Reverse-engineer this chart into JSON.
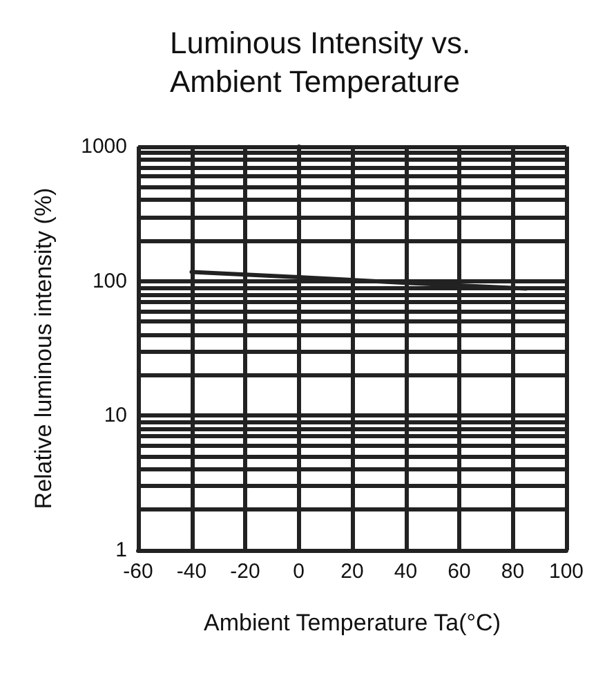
{
  "chart_data": {
    "type": "line",
    "title": "Luminous Intensity vs.\nAmbient Temperature",
    "xlabel": "Ambient Temperature Ta(°C)",
    "ylabel": "Relative luminous intensity (%)",
    "x": [
      -40,
      0,
      40,
      85
    ],
    "series": [
      {
        "color": "#222222",
        "values": [
          117,
          107,
          97,
          88
        ]
      }
    ],
    "xlim": [
      -60,
      100
    ],
    "xticks": [
      -60,
      -40,
      -20,
      0,
      20,
      40,
      60,
      80,
      100
    ],
    "ylim": [
      1,
      1000
    ],
    "yticks": [
      1,
      10,
      100,
      1000
    ],
    "log": "y",
    "grid": true,
    "marker": "none",
    "line_style": "solid"
  }
}
